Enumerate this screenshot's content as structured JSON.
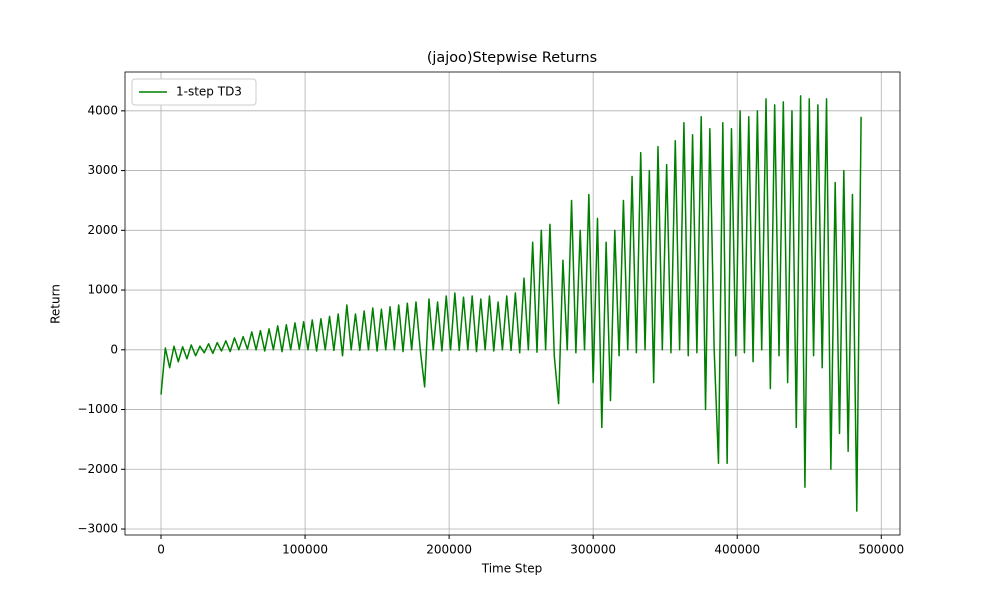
{
  "chart_data": {
    "type": "line",
    "title": "(jajoo)Stepwise Returns",
    "x_label": "Time Step",
    "y_label": "Return",
    "xlim": [
      -25000,
      513000
    ],
    "ylim": [
      -3100,
      4650
    ],
    "xticks": [
      0,
      100000,
      200000,
      300000,
      400000,
      500000
    ],
    "yticks": [
      {
        "value": -3000,
        "label": "−3000"
      },
      {
        "value": -2000,
        "label": "−2000"
      },
      {
        "value": -1000,
        "label": "−1000"
      },
      0,
      1000,
      2000,
      3000,
      4000
    ],
    "grid": true,
    "legend": "upper-left",
    "x": [
      0,
      3000,
      6000,
      9000,
      12000,
      15000,
      18000,
      21000,
      24000,
      27000,
      30000,
      33000,
      36000,
      39000,
      42000,
      45000,
      48000,
      51000,
      54000,
      57000,
      60000,
      63000,
      66000,
      69000,
      72000,
      75000,
      78000,
      81000,
      84000,
      87000,
      90000,
      93000,
      96000,
      99000,
      102000,
      105000,
      108000,
      111000,
      114000,
      117000,
      120000,
      123000,
      126000,
      129000,
      132000,
      135000,
      138000,
      141000,
      144000,
      147000,
      150000,
      153000,
      156000,
      159000,
      162000,
      165000,
      168000,
      171000,
      174000,
      177000,
      180000,
      183000,
      186000,
      189000,
      192000,
      195000,
      198000,
      201000,
      204000,
      207000,
      210000,
      213000,
      216000,
      219000,
      222000,
      225000,
      228000,
      231000,
      234000,
      237000,
      240000,
      243000,
      246000,
      249000,
      252000,
      255000,
      258000,
      261000,
      264000,
      267000,
      270000,
      273000,
      276000,
      279000,
      282000,
      285000,
      288000,
      291000,
      294000,
      297000,
      300000,
      303000,
      306000,
      309000,
      312000,
      315000,
      318000,
      321000,
      324000,
      327000,
      330000,
      333000,
      336000,
      339000,
      342000,
      345000,
      348000,
      351000,
      354000,
      357000,
      360000,
      363000,
      366000,
      369000,
      372000,
      375000,
      378000,
      381000,
      384000,
      387000,
      390000,
      393000,
      396000,
      399000,
      402000,
      405000,
      408000,
      411000,
      414000,
      417000,
      420000,
      423000,
      426000,
      429000,
      432000,
      435000,
      438000,
      441000,
      444000,
      447000,
      450000,
      453000,
      456000,
      459000,
      462000,
      465000,
      468000,
      471000,
      474000,
      477000,
      480000,
      483000,
      486000
    ],
    "series": [
      {
        "name": "1-step TD3",
        "color": "#008000",
        "values": [
          -750,
          30,
          -300,
          60,
          -200,
          50,
          -150,
          80,
          -100,
          60,
          -50,
          100,
          -60,
          120,
          -20,
          150,
          -30,
          200,
          0,
          220,
          10,
          300,
          0,
          320,
          -20,
          350,
          0,
          400,
          -30,
          420,
          0,
          450,
          10,
          470,
          0,
          500,
          -20,
          520,
          0,
          560,
          -10,
          600,
          -100,
          750,
          0,
          600,
          -10,
          650,
          0,
          700,
          -20,
          680,
          0,
          720,
          0,
          750,
          -30,
          780,
          0,
          800,
          -10,
          -620,
          850,
          0,
          800,
          -20,
          900,
          0,
          950,
          -10,
          880,
          0,
          900,
          -30,
          850,
          0,
          900,
          -20,
          800,
          0,
          900,
          -10,
          950,
          -50,
          1200,
          0,
          1800,
          -40,
          2000,
          0,
          2100,
          -100,
          -900,
          1500,
          0,
          2500,
          -50,
          2000,
          0,
          2600,
          -550,
          2200,
          -1300,
          1800,
          -850,
          2000,
          -100,
          2500,
          0,
          2900,
          -50,
          3300,
          0,
          3000,
          -550,
          3400,
          0,
          3100,
          -50,
          3500,
          0,
          3800,
          -100,
          3600,
          -50,
          3900,
          -1000,
          3700,
          0,
          -1900,
          3800,
          -1900,
          3700,
          -100,
          4000,
          -50,
          3900,
          -200,
          4000,
          0,
          4200,
          -650,
          4100,
          -100,
          4150,
          -550,
          4000,
          -1300,
          4250,
          -2300,
          4200,
          -100,
          4100,
          -300,
          4200,
          -2000,
          2800,
          -1400,
          3000,
          -1700,
          2600,
          -2700,
          3900
        ]
      }
    ]
  }
}
